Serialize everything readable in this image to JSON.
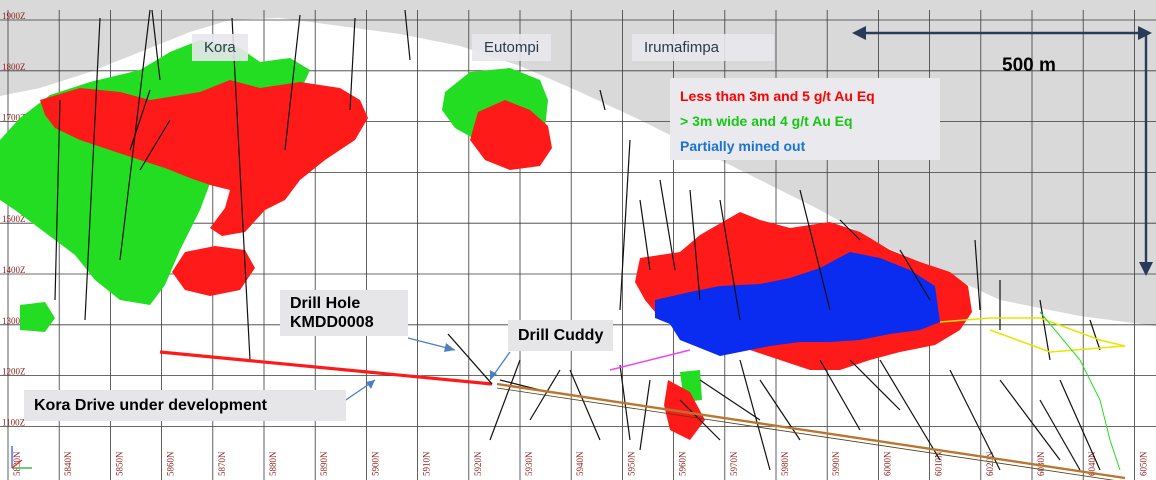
{
  "areas": [
    "Kora",
    "Eutompi",
    "Irumafimpa"
  ],
  "legend": {
    "red": "Less than 3m and 5 g/t Au Eq",
    "green": "> 3m wide and 4 g/t Au Eq",
    "blue": "Partially mined out"
  },
  "scale_bar": "500 m",
  "callouts": {
    "drill_hole_line1": "Drill Hole",
    "drill_hole_line2": "KMDD0008",
    "drill_cuddy": "Drill Cuddy",
    "kora_drive": "Kora Drive under development"
  },
  "elevation_labels": [
    "1900Z",
    "1800Z",
    "1700Z",
    "1600Z",
    "1500Z",
    "1400Z",
    "1300Z",
    "1200Z",
    "1100Z"
  ],
  "northing_labels": [
    "5830N",
    "5840N",
    "5850N",
    "5860N",
    "5870N",
    "5880N",
    "5890N",
    "5900N",
    "5910N",
    "5920N",
    "5930N",
    "5940N",
    "5950N",
    "5960N",
    "5970N",
    "5980N",
    "5990N",
    "6000N",
    "6010N",
    "6020N",
    "6030N",
    "6040N",
    "6050N"
  ],
  "colors": {
    "high_grade_red": "#ff1a1a",
    "wide_green": "#22dd22",
    "mined_blue": "#0a2cf0",
    "legend_red": "#ff0000",
    "legend_green": "#14c814",
    "legend_blue": "#1874cd",
    "terrain": "#d9d9d9",
    "drive": "#b8762e",
    "grid_label": "#8b1a1a"
  }
}
